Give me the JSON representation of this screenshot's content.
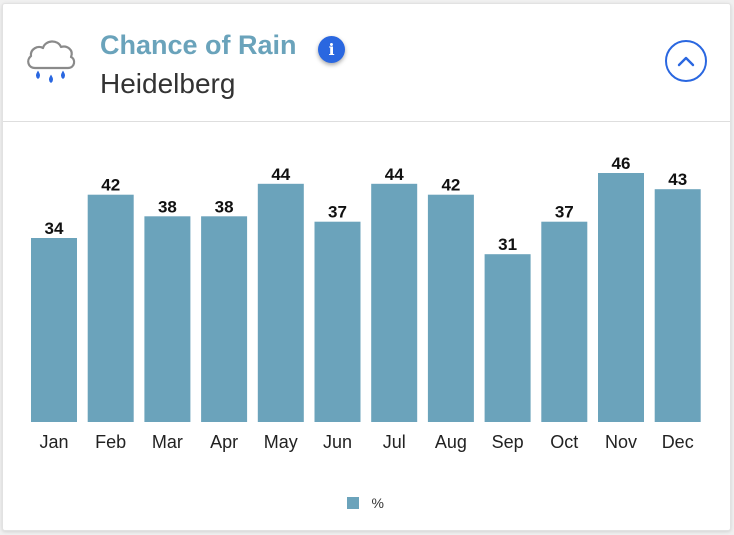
{
  "header": {
    "title": "Chance of Rain",
    "location": "Heidelberg",
    "info_icon_glyph": "i"
  },
  "colors": {
    "title": "#6aa3bb",
    "bar": "#6ba3bb",
    "accent": "#2a67e0",
    "rain_drop": "#2a67e0",
    "cloud_stroke": "#8a8a8a"
  },
  "icons": {
    "weather": "rain-cloud-icon",
    "info": "info-icon",
    "collapse": "chevron-up-icon"
  },
  "chart_data": {
    "type": "bar",
    "title": "Chance of Rain",
    "categories": [
      "Jan",
      "Feb",
      "Mar",
      "Apr",
      "May",
      "Jun",
      "Jul",
      "Aug",
      "Sep",
      "Oct",
      "Nov",
      "Dec"
    ],
    "series": [
      {
        "name": "%",
        "values": [
          34,
          42,
          38,
          38,
          44,
          37,
          44,
          42,
          31,
          37,
          46,
          43
        ]
      }
    ],
    "ylim": [
      0,
      46
    ],
    "xlabel": "",
    "ylabel": "",
    "grid": false,
    "legend": "bottom-center"
  }
}
